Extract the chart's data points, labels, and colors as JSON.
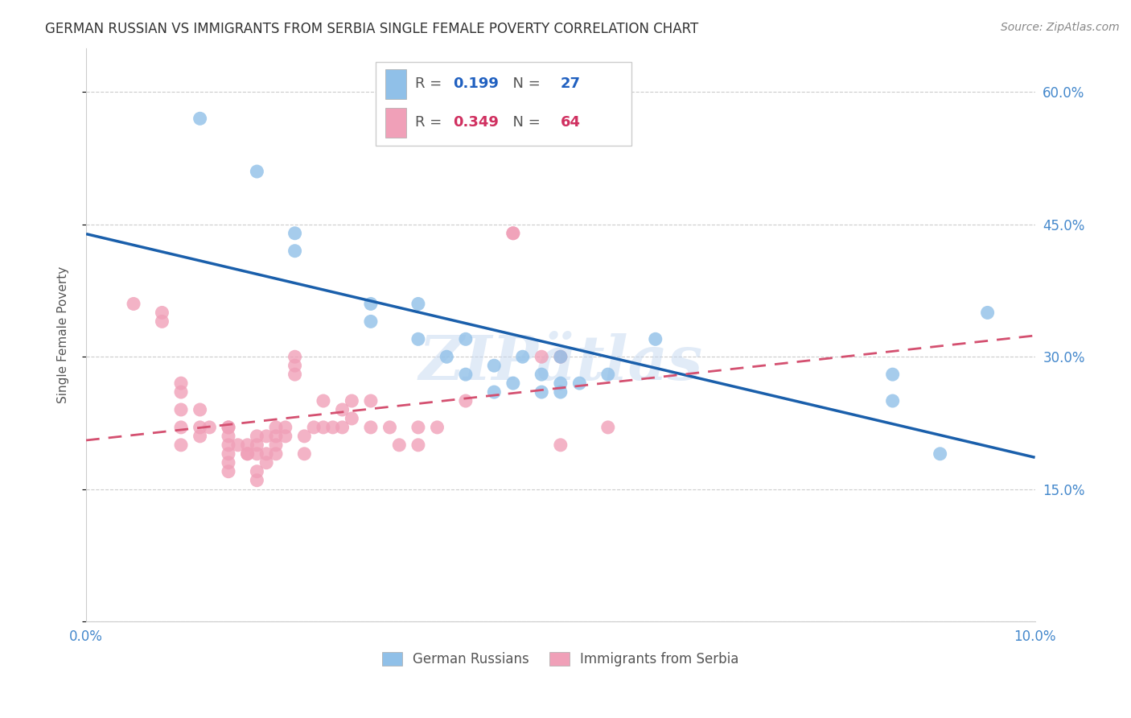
{
  "title": "GERMAN RUSSIAN VS IMMIGRANTS FROM SERBIA SINGLE FEMALE POVERTY CORRELATION CHART",
  "source": "Source: ZipAtlas.com",
  "ylabel": "Single Female Poverty",
  "xmin": 0.0,
  "xmax": 0.1,
  "ymin": 0.0,
  "ymax": 0.65,
  "yticks": [
    0.0,
    0.15,
    0.3,
    0.45,
    0.6
  ],
  "xticks": [
    0.0,
    0.02,
    0.04,
    0.06,
    0.08,
    0.1
  ],
  "blue_color": "#90C0E8",
  "pink_color": "#F0A0B8",
  "blue_line_color": "#1A5FAB",
  "pink_line_color": "#D45070",
  "legend_blue_R_val": "0.199",
  "legend_blue_N_val": "27",
  "legend_pink_R_val": "0.349",
  "legend_pink_N_val": "64",
  "watermark": "ZIPätlas",
  "blue_scatter_x": [
    0.012,
    0.018,
    0.022,
    0.022,
    0.03,
    0.03,
    0.035,
    0.035,
    0.038,
    0.04,
    0.04,
    0.043,
    0.043,
    0.045,
    0.046,
    0.048,
    0.048,
    0.05,
    0.05,
    0.05,
    0.052,
    0.055,
    0.06,
    0.085,
    0.085,
    0.09,
    0.095
  ],
  "blue_scatter_y": [
    0.57,
    0.51,
    0.44,
    0.42,
    0.36,
    0.34,
    0.36,
    0.32,
    0.3,
    0.32,
    0.28,
    0.29,
    0.26,
    0.27,
    0.3,
    0.26,
    0.28,
    0.3,
    0.27,
    0.26,
    0.27,
    0.28,
    0.32,
    0.25,
    0.28,
    0.19,
    0.35
  ],
  "pink_scatter_x": [
    0.005,
    0.008,
    0.008,
    0.01,
    0.01,
    0.01,
    0.01,
    0.01,
    0.012,
    0.012,
    0.012,
    0.013,
    0.015,
    0.015,
    0.015,
    0.015,
    0.015,
    0.015,
    0.015,
    0.016,
    0.017,
    0.017,
    0.017,
    0.018,
    0.018,
    0.018,
    0.018,
    0.018,
    0.019,
    0.019,
    0.019,
    0.02,
    0.02,
    0.02,
    0.02,
    0.021,
    0.021,
    0.022,
    0.022,
    0.022,
    0.023,
    0.023,
    0.024,
    0.025,
    0.025,
    0.026,
    0.027,
    0.027,
    0.028,
    0.028,
    0.03,
    0.03,
    0.032,
    0.033,
    0.035,
    0.035,
    0.037,
    0.04,
    0.045,
    0.045,
    0.048,
    0.05,
    0.05,
    0.055
  ],
  "pink_scatter_y": [
    0.36,
    0.35,
    0.34,
    0.26,
    0.27,
    0.24,
    0.22,
    0.2,
    0.24,
    0.22,
    0.21,
    0.22,
    0.22,
    0.21,
    0.22,
    0.2,
    0.19,
    0.18,
    0.17,
    0.2,
    0.19,
    0.2,
    0.19,
    0.2,
    0.21,
    0.19,
    0.17,
    0.16,
    0.21,
    0.19,
    0.18,
    0.21,
    0.22,
    0.2,
    0.19,
    0.22,
    0.21,
    0.28,
    0.29,
    0.3,
    0.21,
    0.19,
    0.22,
    0.25,
    0.22,
    0.22,
    0.24,
    0.22,
    0.25,
    0.23,
    0.22,
    0.25,
    0.22,
    0.2,
    0.22,
    0.2,
    0.22,
    0.25,
    0.44,
    0.44,
    0.3,
    0.3,
    0.2,
    0.22
  ]
}
